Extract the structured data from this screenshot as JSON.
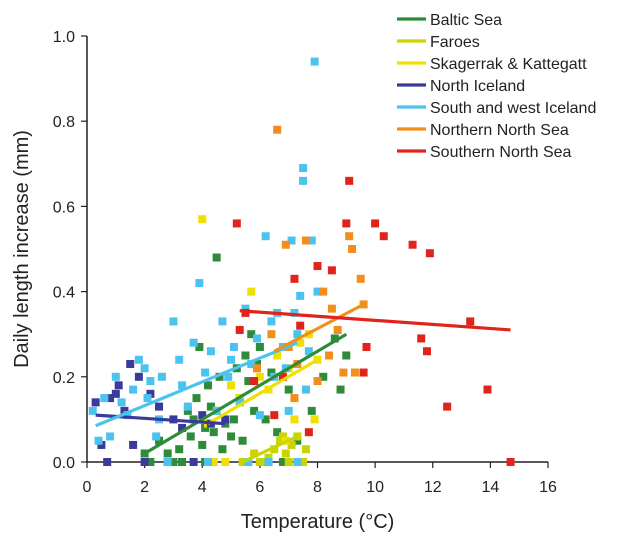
{
  "chart_data": {
    "type": "scatter",
    "title": "",
    "xlabel": "Temperature (°C)",
    "ylabel": "Daily length increase (mm)",
    "xlim": [
      0,
      16
    ],
    "ylim": [
      0,
      1.0
    ],
    "x_ticks": [
      0,
      2,
      4,
      6,
      8,
      10,
      12,
      14,
      16
    ],
    "y_ticks": [
      0.0,
      0.2,
      0.4,
      0.6,
      0.8,
      1.0
    ],
    "x_tick_labels": [
      "0",
      "2",
      "4",
      "6",
      "8",
      "10",
      "12",
      "14",
      "16"
    ],
    "y_tick_labels": [
      "0.0",
      "0.2",
      "0.4",
      "0.6",
      "0.8",
      "1.0"
    ],
    "grid": false,
    "legend_position": "top-right",
    "series": [
      {
        "name": "Baltic Sea",
        "color": "#2e8b3a",
        "trend": [
          [
            2.0,
            0.02
          ],
          [
            9.0,
            0.3
          ]
        ],
        "points": [
          [
            2.0,
            0.02
          ],
          [
            2.2,
            0.0
          ],
          [
            2.5,
            0.05
          ],
          [
            2.8,
            0.02
          ],
          [
            3.0,
            0.0
          ],
          [
            3.2,
            0.03
          ],
          [
            3.5,
            0.12
          ],
          [
            3.6,
            0.06
          ],
          [
            3.7,
            0.1
          ],
          [
            3.8,
            0.15
          ],
          [
            3.9,
            0.27
          ],
          [
            4.0,
            0.04
          ],
          [
            4.1,
            0.08
          ],
          [
            4.2,
            0.18
          ],
          [
            4.3,
            0.13
          ],
          [
            4.4,
            0.07
          ],
          [
            4.5,
            0.48
          ],
          [
            4.6,
            0.2
          ],
          [
            4.7,
            0.03
          ],
          [
            4.8,
            0.09
          ],
          [
            5.0,
            0.06
          ],
          [
            5.1,
            0.1
          ],
          [
            5.2,
            0.22
          ],
          [
            5.3,
            0.15
          ],
          [
            5.4,
            0.05
          ],
          [
            5.5,
            0.25
          ],
          [
            5.6,
            0.19
          ],
          [
            5.7,
            0.3
          ],
          [
            5.8,
            0.12
          ],
          [
            5.9,
            0.23
          ],
          [
            6.0,
            0.27
          ],
          [
            6.2,
            0.1
          ],
          [
            6.4,
            0.21
          ],
          [
            6.6,
            0.07
          ],
          [
            7.0,
            0.17
          ],
          [
            7.3,
            0.05
          ],
          [
            7.8,
            0.12
          ],
          [
            8.2,
            0.2
          ],
          [
            8.6,
            0.29
          ],
          [
            9.0,
            0.25
          ],
          [
            8.8,
            0.17
          ],
          [
            3.3,
            0.0
          ],
          [
            4.1,
            0.0
          ],
          [
            6.8,
            0.0
          ]
        ]
      },
      {
        "name": "Faroes",
        "color": "#c9d400",
        "trend": [
          [
            5.4,
            0.0
          ],
          [
            7.3,
            0.06
          ]
        ],
        "points": [
          [
            5.4,
            0.0
          ],
          [
            5.8,
            0.02
          ],
          [
            6.0,
            0.0
          ],
          [
            6.3,
            0.01
          ],
          [
            6.5,
            0.03
          ],
          [
            6.7,
            0.05
          ],
          [
            6.9,
            0.02
          ],
          [
            7.0,
            0.0
          ],
          [
            7.1,
            0.04
          ],
          [
            7.3,
            0.06
          ],
          [
            7.5,
            0.0
          ],
          [
            7.6,
            0.03
          ],
          [
            6.2,
            0.0
          ],
          [
            6.8,
            0.06
          ]
        ]
      },
      {
        "name": "Skagerrak & Kattegatt",
        "color": "#f0e000",
        "trend": [
          [
            4.2,
            0.09
          ],
          [
            8.0,
            0.24
          ]
        ],
        "points": [
          [
            4.0,
            0.57
          ],
          [
            4.2,
            0.09
          ],
          [
            4.5,
            0.12
          ],
          [
            4.8,
            0.0
          ],
          [
            5.0,
            0.18
          ],
          [
            5.3,
            0.15
          ],
          [
            5.7,
            0.4
          ],
          [
            6.0,
            0.2
          ],
          [
            6.3,
            0.17
          ],
          [
            6.6,
            0.25
          ],
          [
            7.0,
            0.22
          ],
          [
            7.2,
            0.1
          ],
          [
            7.4,
            0.28
          ],
          [
            7.7,
            0.3
          ],
          [
            8.0,
            0.24
          ],
          [
            7.9,
            0.1
          ],
          [
            4.4,
            0.0
          ],
          [
            6.9,
            0.05
          ]
        ]
      },
      {
        "name": "North Iceland",
        "color": "#3a3a9a",
        "trend": [
          [
            0.3,
            0.11
          ],
          [
            4.8,
            0.09
          ]
        ],
        "points": [
          [
            0.3,
            0.14
          ],
          [
            0.5,
            0.04
          ],
          [
            0.7,
            0.0
          ],
          [
            0.8,
            0.15
          ],
          [
            1.0,
            0.16
          ],
          [
            1.1,
            0.18
          ],
          [
            1.3,
            0.12
          ],
          [
            1.5,
            0.23
          ],
          [
            1.6,
            0.04
          ],
          [
            1.8,
            0.2
          ],
          [
            2.0,
            0.0
          ],
          [
            2.2,
            0.16
          ],
          [
            2.5,
            0.13
          ],
          [
            2.8,
            0.0
          ],
          [
            3.0,
            0.1
          ],
          [
            3.3,
            0.08
          ],
          [
            3.7,
            0.0
          ],
          [
            4.0,
            0.11
          ],
          [
            4.3,
            0.09
          ],
          [
            4.8,
            0.1
          ]
        ]
      },
      {
        "name": "South and west Iceland",
        "color": "#4cc3ee",
        "trend": [
          [
            0.3,
            0.085
          ],
          [
            7.3,
            0.28
          ]
        ],
        "points": [
          [
            0.2,
            0.12
          ],
          [
            0.4,
            0.05
          ],
          [
            0.6,
            0.15
          ],
          [
            0.8,
            0.06
          ],
          [
            1.0,
            0.2
          ],
          [
            1.2,
            0.14
          ],
          [
            1.4,
            0.11
          ],
          [
            1.6,
            0.17
          ],
          [
            1.8,
            0.24
          ],
          [
            2.0,
            0.22
          ],
          [
            2.1,
            0.15
          ],
          [
            2.2,
            0.19
          ],
          [
            2.4,
            0.06
          ],
          [
            2.5,
            0.1
          ],
          [
            2.6,
            0.2
          ],
          [
            2.8,
            0.0
          ],
          [
            3.0,
            0.33
          ],
          [
            3.2,
            0.24
          ],
          [
            3.3,
            0.18
          ],
          [
            3.5,
            0.13
          ],
          [
            3.7,
            0.28
          ],
          [
            3.9,
            0.42
          ],
          [
            4.1,
            0.21
          ],
          [
            4.3,
            0.26
          ],
          [
            4.5,
            0.12
          ],
          [
            4.7,
            0.33
          ],
          [
            4.9,
            0.2
          ],
          [
            5.0,
            0.24
          ],
          [
            5.1,
            0.27
          ],
          [
            5.3,
            0.14
          ],
          [
            5.5,
            0.36
          ],
          [
            5.7,
            0.23
          ],
          [
            5.9,
            0.29
          ],
          [
            6.0,
            0.11
          ],
          [
            6.2,
            0.53
          ],
          [
            6.4,
            0.33
          ],
          [
            6.5,
            0.2
          ],
          [
            6.6,
            0.35
          ],
          [
            6.8,
            0.27
          ],
          [
            6.9,
            0.22
          ],
          [
            7.0,
            0.12
          ],
          [
            7.1,
            0.52
          ],
          [
            7.2,
            0.35
          ],
          [
            7.3,
            0.3
          ],
          [
            7.4,
            0.39
          ],
          [
            7.5,
            0.69
          ],
          [
            7.5,
            0.66
          ],
          [
            7.6,
            0.17
          ],
          [
            7.7,
            0.26
          ],
          [
            7.8,
            0.52
          ],
          [
            7.9,
            0.94
          ],
          [
            8.0,
            0.4
          ],
          [
            6.3,
            0.0
          ],
          [
            7.3,
            0.0
          ],
          [
            5.6,
            0.0
          ],
          [
            4.2,
            0.0
          ]
        ]
      },
      {
        "name": "Northern North Sea",
        "color": "#f18f1c",
        "trend": [
          [
            6.5,
            0.26
          ],
          [
            9.6,
            0.37
          ]
        ],
        "points": [
          [
            6.6,
            0.78
          ],
          [
            6.9,
            0.51
          ],
          [
            7.3,
            0.23
          ],
          [
            7.6,
            0.52
          ],
          [
            8.0,
            0.19
          ],
          [
            8.2,
            0.4
          ],
          [
            8.5,
            0.36
          ],
          [
            8.7,
            0.31
          ],
          [
            8.9,
            0.21
          ],
          [
            9.1,
            0.53
          ],
          [
            9.2,
            0.5
          ],
          [
            9.3,
            0.21
          ],
          [
            9.5,
            0.43
          ],
          [
            9.6,
            0.37
          ],
          [
            8.4,
            0.25
          ],
          [
            7.0,
            0.27
          ],
          [
            7.2,
            0.15
          ],
          [
            5.9,
            0.22
          ],
          [
            6.4,
            0.3
          ]
        ]
      },
      {
        "name": "Southern North Sea",
        "color": "#e0241c",
        "trend": [
          [
            5.3,
            0.355
          ],
          [
            14.7,
            0.31
          ]
        ],
        "points": [
          [
            5.2,
            0.56
          ],
          [
            5.3,
            0.31
          ],
          [
            5.5,
            0.35
          ],
          [
            5.8,
            0.19
          ],
          [
            6.5,
            0.11
          ],
          [
            6.8,
            0.2
          ],
          [
            7.2,
            0.43
          ],
          [
            7.4,
            0.32
          ],
          [
            7.7,
            0.07
          ],
          [
            8.0,
            0.46
          ],
          [
            8.5,
            0.45
          ],
          [
            9.0,
            0.56
          ],
          [
            9.1,
            0.66
          ],
          [
            9.6,
            0.21
          ],
          [
            9.7,
            0.27
          ],
          [
            10.0,
            0.56
          ],
          [
            10.3,
            0.53
          ],
          [
            11.3,
            0.51
          ],
          [
            11.6,
            0.29
          ],
          [
            11.8,
            0.26
          ],
          [
            11.9,
            0.49
          ],
          [
            12.5,
            0.13
          ],
          [
            13.3,
            0.33
          ],
          [
            13.9,
            0.17
          ],
          [
            14.7,
            0.0
          ]
        ]
      }
    ]
  }
}
